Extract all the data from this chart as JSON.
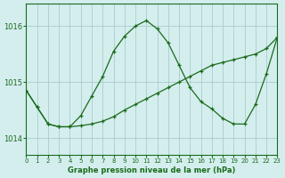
{
  "title": "Graphe pression niveau de la mer (hPa)",
  "background_color": "#d4eeee",
  "grid_color": "#aacccc",
  "line_color": "#1a6b1a",
  "xlim": [
    0,
    23
  ],
  "ylim": [
    1013.7,
    1016.4
  ],
  "yticks": [
    1014,
    1015,
    1016
  ],
  "xticks": [
    0,
    1,
    2,
    3,
    4,
    5,
    6,
    7,
    8,
    9,
    10,
    11,
    12,
    13,
    14,
    15,
    16,
    17,
    18,
    19,
    20,
    21,
    22,
    23
  ],
  "series1_x": [
    0,
    1,
    2,
    3,
    4,
    5,
    6,
    7,
    8,
    9,
    10,
    11,
    12,
    13,
    14,
    15,
    16,
    17,
    18,
    19,
    20,
    21,
    22,
    23
  ],
  "series1_y": [
    1014.85,
    1014.55,
    1014.25,
    1014.2,
    1014.2,
    1014.22,
    1014.25,
    1014.3,
    1014.38,
    1014.5,
    1014.6,
    1014.7,
    1014.8,
    1014.9,
    1015.0,
    1015.1,
    1015.2,
    1015.3,
    1015.35,
    1015.4,
    1015.45,
    1015.5,
    1015.6,
    1015.8
  ],
  "series2_x": [
    0,
    1,
    2,
    3,
    4,
    5,
    6,
    7,
    8,
    9,
    10,
    11,
    12,
    13,
    14,
    15,
    16,
    17,
    18,
    19,
    20,
    21,
    22,
    23
  ],
  "series2_y": [
    1014.85,
    1014.55,
    1014.25,
    1014.2,
    1014.2,
    1014.4,
    1014.75,
    1015.1,
    1015.55,
    1015.82,
    1016.0,
    1016.1,
    1015.95,
    1015.7,
    1015.3,
    1014.9,
    1014.65,
    1014.52,
    1014.35,
    1014.25,
    1014.25,
    1014.6,
    1015.15,
    1015.8
  ]
}
